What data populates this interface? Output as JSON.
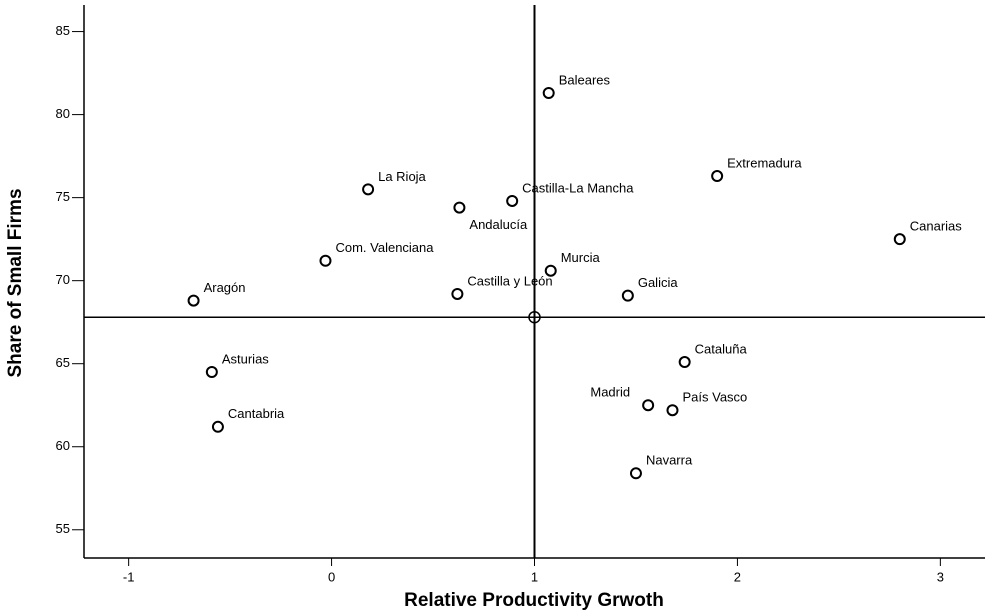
{
  "chart_data": {
    "type": "scatter",
    "xlabel": "Relative Productivity Grwoth",
    "ylabel": "Share of Small Firms",
    "labels": [
      "Baleares",
      "La Rioja",
      "Castilla-La Mancha",
      "Andalucía",
      "Extremadura",
      "Canarias",
      "Com. Valenciana",
      "Murcia",
      "Aragón",
      "Castilla y León",
      "Galicia",
      "Asturias",
      "Cantabria",
      "Cataluña",
      "Madrid",
      "País Vasco",
      "Navarra"
    ],
    "x": [
      1.07,
      0.18,
      0.89,
      0.63,
      1.9,
      2.8,
      -0.03,
      1.08,
      -0.68,
      0.62,
      1.46,
      -0.59,
      -0.56,
      1.74,
      1.56,
      1.68,
      1.5
    ],
    "values": [
      81.3,
      75.5,
      74.8,
      74.4,
      76.3,
      72.5,
      71.2,
      70.6,
      68.8,
      69.2,
      69.1,
      64.5,
      61.2,
      65.1,
      62.5,
      62.2,
      58.4
    ],
    "reference_x": 1,
    "reference_y": 67.8,
    "color": "#000000",
    "xlim": [
      -1.22,
      3.22
    ],
    "ylim": [
      53.3,
      86.6
    ],
    "xticks": [
      -1,
      0,
      1,
      2,
      3
    ],
    "yticks": [
      55,
      60,
      65,
      70,
      75,
      80,
      85
    ]
  }
}
